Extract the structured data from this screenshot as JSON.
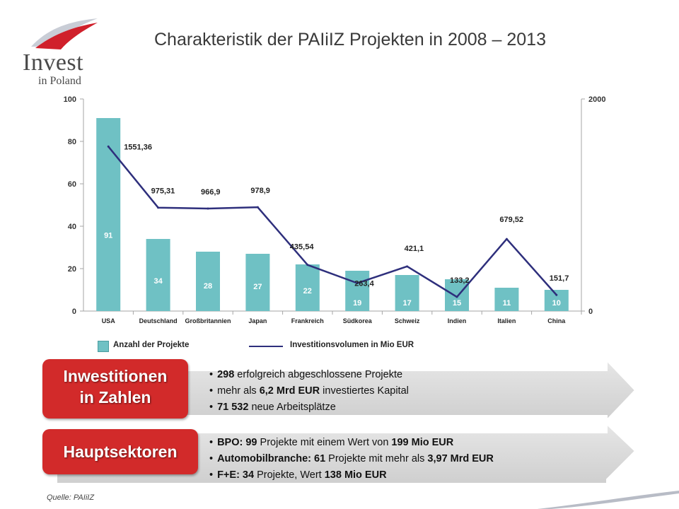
{
  "logo": {
    "word": "Invest",
    "sub": "in Poland"
  },
  "title": "Charakteristik der PAIiIZ Projekten in 2008 – 2013",
  "chart_data": {
    "type": "bar",
    "categories": [
      "USA",
      "Deutschland",
      "Großbritannien",
      "Japan",
      "Frankreich",
      "Südkorea",
      "Schweiz",
      "Indien",
      "Italien",
      "China"
    ],
    "series": [
      {
        "name": "Anzahl der Projekte",
        "type": "bar",
        "axis": "left",
        "color": "#6fc1c4",
        "values": [
          91,
          34,
          28,
          27,
          22,
          19,
          17,
          15,
          11,
          10
        ],
        "labels": [
          "91",
          "34",
          "28",
          "27",
          "22",
          "19",
          "17",
          "15",
          "11",
          "10"
        ]
      },
      {
        "name": "Investitionsvolumen in Mio EUR",
        "type": "line",
        "axis": "right",
        "color": "#2e2f7c",
        "values": [
          1551.36,
          975.31,
          966.9,
          978.9,
          435.54,
          263.4,
          421.1,
          133.2,
          679.52,
          151.7
        ],
        "labels": [
          "1551,36",
          "975,31",
          "966,9",
          "978,9",
          "435,54",
          "263,4",
          "421,1",
          "133,2",
          "679,52",
          "151,7"
        ]
      }
    ],
    "ylim_left": [
      0,
      100
    ],
    "yticks_left": [
      "0",
      "20",
      "40",
      "60",
      "80",
      "100"
    ],
    "ylim_right": [
      0,
      2000
    ],
    "yticks_right": [
      "0",
      "2000"
    ],
    "grid": false,
    "legend": "bottom"
  },
  "legend": {
    "bars": "Anzahl der Projekte",
    "line": "Investitionsvolumen in Mio EUR"
  },
  "banner1": {
    "label_line1": "Inwestitionen",
    "label_line2": "in Zahlen",
    "items": [
      {
        "b1": "298",
        "t1": " erfolgreich abgeschlossene Projekte"
      },
      {
        "t0": "mehr als ",
        "b1": "6,2 Mrd EUR",
        "t1": " investiertes Kapital"
      },
      {
        "b1": "71 532",
        "t1": " neue Arbeitsplätze"
      }
    ]
  },
  "banner2": {
    "label": "Hauptsektoren",
    "items": [
      {
        "b1": "BPO: 99",
        "t1": " Projekte mit einem Wert von ",
        "b2": "199 Mio EUR"
      },
      {
        "b1": "Automobilbranche: 61",
        "t1": " Projekte mit mehr als ",
        "b2": "3,97 Mrd EUR"
      },
      {
        "b1": "F+E: 34",
        "t1": " Projekte, Wert ",
        "b2": "138 Mio EUR"
      }
    ]
  },
  "source": "Quelle: PAIiIZ",
  "colors": {
    "accent_red": "#d22a2a",
    "bar": "#6fc1c4",
    "line": "#2e2f7c",
    "banner_gray": "#d9d9d9"
  }
}
